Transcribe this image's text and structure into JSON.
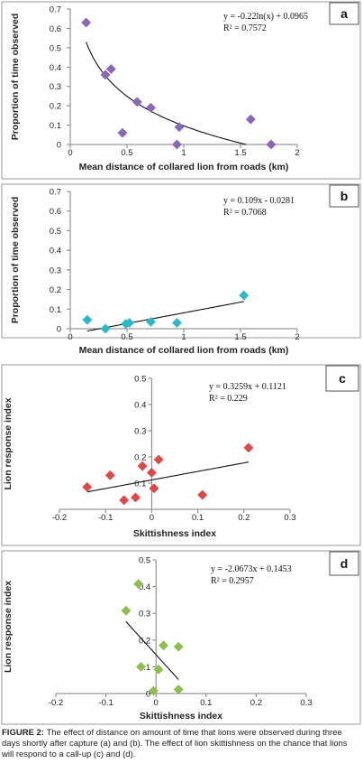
{
  "chart_data": [
    {
      "panel": "a",
      "type": "scatter",
      "color": "#8868b8",
      "marker": "diamond",
      "xlabel": "Mean distance of collared lion from roads (km)",
      "ylabel": "Proportion of time observed",
      "xlim": [
        0,
        2
      ],
      "ylim": [
        0,
        0.7
      ],
      "xticks": [
        "0",
        "0.5",
        "1",
        "1.5",
        "2"
      ],
      "yticks": [
        "0",
        "0.1",
        "0.2",
        "0.3",
        "0.4",
        "0.5",
        "0.6",
        "0.7"
      ],
      "points": [
        {
          "x": 0.14,
          "y": 0.63
        },
        {
          "x": 0.31,
          "y": 0.36
        },
        {
          "x": 0.36,
          "y": 0.39
        },
        {
          "x": 0.46,
          "y": 0.06
        },
        {
          "x": 0.59,
          "y": 0.22
        },
        {
          "x": 0.71,
          "y": 0.19
        },
        {
          "x": 0.94,
          "y": 0.0
        },
        {
          "x": 0.96,
          "y": 0.09
        },
        {
          "x": 1.59,
          "y": 0.13
        },
        {
          "x": 1.77,
          "y": 0.0
        }
      ],
      "trendline": {
        "model": "log",
        "a": -0.22,
        "b": 0.0965,
        "x_range": [
          0.14,
          1.55
        ]
      },
      "equation": "y = -0.22ln(x) + 0.0965",
      "r2": "R² = 0.7572"
    },
    {
      "panel": "b",
      "type": "scatter",
      "color": "#2cb8cc",
      "marker": "diamond",
      "xlabel": "Mean distance of collared lion from roads (km)",
      "ylabel": "Proportion of time observed",
      "xlim": [
        0,
        2
      ],
      "ylim": [
        0,
        0.7
      ],
      "xticks": [
        "0",
        "0.5",
        "1",
        "1.5",
        "2"
      ],
      "yticks": [
        "0",
        "0.1",
        "0.2",
        "0.3",
        "0.4",
        "0.5",
        "0.6",
        "0.7"
      ],
      "points": [
        {
          "x": 0.15,
          "y": 0.045
        },
        {
          "x": 0.31,
          "y": 0.0
        },
        {
          "x": 0.49,
          "y": 0.025
        },
        {
          "x": 0.52,
          "y": 0.03
        },
        {
          "x": 0.71,
          "y": 0.035
        },
        {
          "x": 0.94,
          "y": 0.03
        },
        {
          "x": 1.53,
          "y": 0.17
        }
      ],
      "trendline": {
        "model": "linear",
        "a": 0.109,
        "b": -0.0281,
        "x_range": [
          0.15,
          1.53
        ]
      },
      "equation": "y = 0.109x - 0.0281",
      "r2": "R² = 0.7068"
    },
    {
      "panel": "c",
      "type": "scatter",
      "color": "#e04848",
      "marker": "diamond",
      "xlabel": "Skittishness index",
      "ylabel": "Lion response index",
      "xlim": [
        -0.2,
        0.3
      ],
      "ylim": [
        0,
        0.5
      ],
      "xticks": [
        "-0.2",
        "-0.1",
        "0",
        "0.1",
        "0.2",
        "0.3"
      ],
      "yticks": [
        "0.1",
        "0.2",
        "0.3",
        "0.4",
        "0.5"
      ],
      "points": [
        {
          "x": -0.14,
          "y": 0.085
        },
        {
          "x": -0.09,
          "y": 0.13
        },
        {
          "x": -0.06,
          "y": 0.035
        },
        {
          "x": -0.035,
          "y": 0.045
        },
        {
          "x": -0.02,
          "y": 0.165
        },
        {
          "x": 0.0,
          "y": 0.14
        },
        {
          "x": 0.005,
          "y": 0.08
        },
        {
          "x": 0.015,
          "y": 0.19
        },
        {
          "x": 0.11,
          "y": 0.055
        },
        {
          "x": 0.21,
          "y": 0.235
        }
      ],
      "trendline": {
        "model": "linear",
        "a": 0.3259,
        "b": 0.1121,
        "x_range": [
          -0.14,
          0.21
        ]
      },
      "equation": "y = 0.3259x + 0.1121",
      "r2": "R² = 0.229"
    },
    {
      "panel": "d",
      "type": "scatter",
      "color": "#8cc04c",
      "marker": "diamond",
      "xlabel": "Skittishness index",
      "ylabel": "Lion response index",
      "xlim": [
        -0.2,
        0.3
      ],
      "ylim": [
        0,
        0.5
      ],
      "xticks": [
        "-0.2",
        "-0.1",
        "0",
        "0.1",
        "0.2",
        "0.3"
      ],
      "yticks": [
        "0",
        "0.1",
        "0.2",
        "0.3",
        "0.4",
        "0.5"
      ],
      "points": [
        {
          "x": -0.06,
          "y": 0.31
        },
        {
          "x": -0.035,
          "y": 0.41
        },
        {
          "x": -0.03,
          "y": 0.1
        },
        {
          "x": -0.005,
          "y": 0.01
        },
        {
          "x": 0.005,
          "y": 0.09
        },
        {
          "x": 0.015,
          "y": 0.18
        },
        {
          "x": 0.045,
          "y": 0.175
        },
        {
          "x": 0.045,
          "y": 0.015
        }
      ],
      "trendline": {
        "model": "linear",
        "a": -2.0673,
        "b": 0.1453,
        "x_range": [
          -0.06,
          0.045
        ]
      },
      "equation": "y = -2.0673x + 0.1453",
      "r2": "R² = 0.2957"
    }
  ],
  "caption": {
    "label": "FIGURE 2:",
    "text": " The effect of distance on amount of time that lions were observed during three days shortly after capture (a) and (b). The effect of lion skittishness on the chance that lions will respond to a call-up (c) and (d)."
  }
}
